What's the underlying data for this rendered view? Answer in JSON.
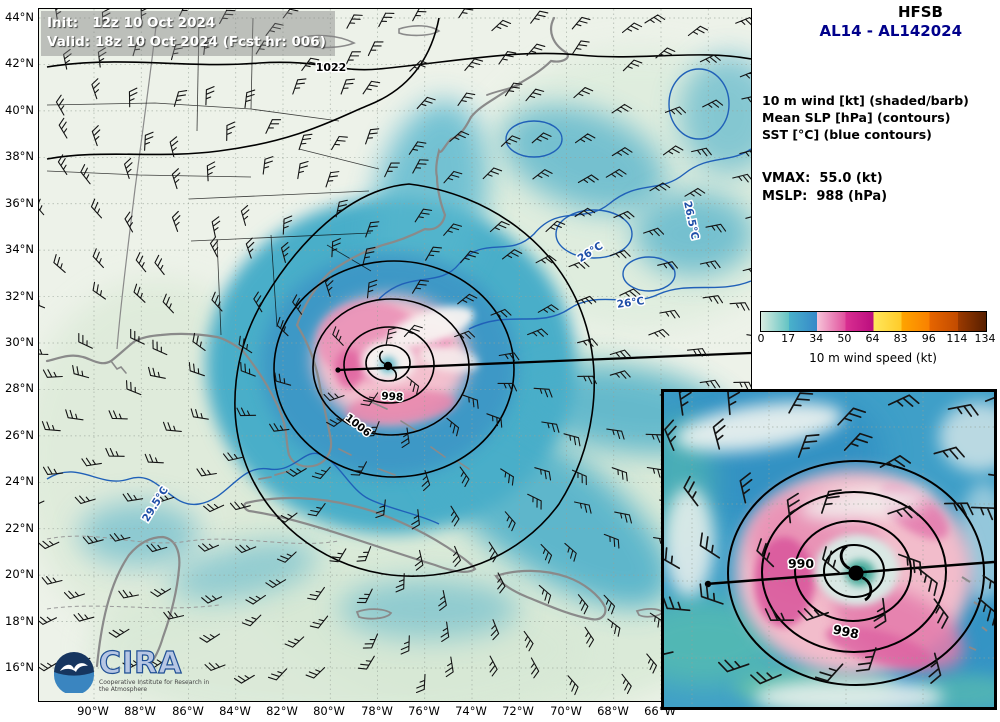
{
  "header": {
    "model": "HFSB",
    "storm_id": "AL14 - AL142024"
  },
  "overlay": {
    "init": "Init:   12z 10 Oct 2024",
    "valid": "Valid: 18z 10 Oct 2024 (Fcst hr: 006)"
  },
  "info": {
    "field1": "10 m wind [kt] (shaded/barb)",
    "field2": "Mean SLP [hPa] (contours)",
    "field3": "SST [°C] (blue contours)",
    "vmax": "VMAX:  55.0 (kt)",
    "mslp": "MSLP:  988 (hPa)"
  },
  "colorbar": {
    "label": "10 m wind speed (kt)",
    "ticks": [
      "0",
      "17",
      "34",
      "50",
      "64",
      "83",
      "96",
      "114",
      "134"
    ],
    "segments": [
      [
        "#d8ece0",
        "#62c3c3"
      ],
      [
        "#49b1cb",
        "#3688c8"
      ],
      [
        "#f6c3d8",
        "#e1519e"
      ],
      [
        "#d92f91",
        "#bb0d7e"
      ],
      [
        "#ffe75c",
        "#ffcb28"
      ],
      [
        "#ffa400",
        "#f98000"
      ],
      [
        "#e66500",
        "#c24b00"
      ],
      [
        "#9c3a00",
        "#571f00"
      ]
    ]
  },
  "axes": {
    "lat": [
      "44°N",
      "42°N",
      "40°N",
      "38°N",
      "36°N",
      "34°N",
      "32°N",
      "30°N",
      "28°N",
      "26°N",
      "24°N",
      "22°N",
      "20°N",
      "18°N",
      "16°N"
    ],
    "lon": [
      "90°W",
      "88°W",
      "86°W",
      "84°W",
      "82°W",
      "80°W",
      "78°W",
      "76°W",
      "74°W",
      "72°W",
      "70°W",
      "68°W",
      "66°W"
    ]
  },
  "map_labels": {
    "slp_outer": "1022",
    "slp_mid": "1006",
    "slp_inner": "998",
    "sst_gulf": "29.5°C",
    "sst_atl1": "26°C",
    "sst_atl2": "26.5°C",
    "sst_atl3": "26°C"
  },
  "inset_labels": {
    "p990": "990",
    "p998": "998"
  },
  "branding": {
    "cira": "CIRA",
    "sub": "Cooperative Institute for Research in the Atmosphere"
  }
}
